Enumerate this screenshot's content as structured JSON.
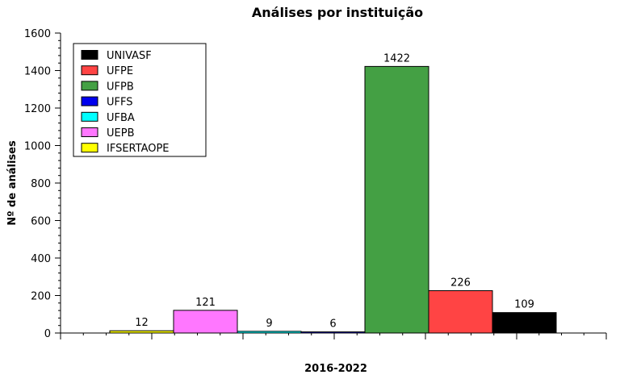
{
  "chart_data": {
    "type": "bar",
    "title": "Análises por instituição",
    "xlabel": "2016-2022",
    "ylabel": "Nº de análises",
    "ylim": [
      0,
      1600
    ],
    "yticks": [
      0,
      200,
      400,
      600,
      800,
      1000,
      1200,
      1400,
      1600
    ],
    "grid": false,
    "legend_position": "top-left",
    "series": [
      {
        "name": "IFSERTAOPE",
        "value": 12,
        "color": "#ffff00"
      },
      {
        "name": "UEPB",
        "value": 121,
        "color": "#ff77ff"
      },
      {
        "name": "UFBA",
        "value": 9,
        "color": "#00ffff"
      },
      {
        "name": "UFFS",
        "value": 6,
        "color": "#0000ee"
      },
      {
        "name": "UFPB",
        "value": 1422,
        "color": "#44a044"
      },
      {
        "name": "UFPE",
        "value": 226,
        "color": "#ff4444"
      },
      {
        "name": "UNIVASF",
        "value": 109,
        "color": "#000000"
      }
    ],
    "legend_order": [
      "UNIVASF",
      "UFPE",
      "UFPB",
      "UFFS",
      "UFBA",
      "UEPB",
      "IFSERTAOPE"
    ]
  }
}
